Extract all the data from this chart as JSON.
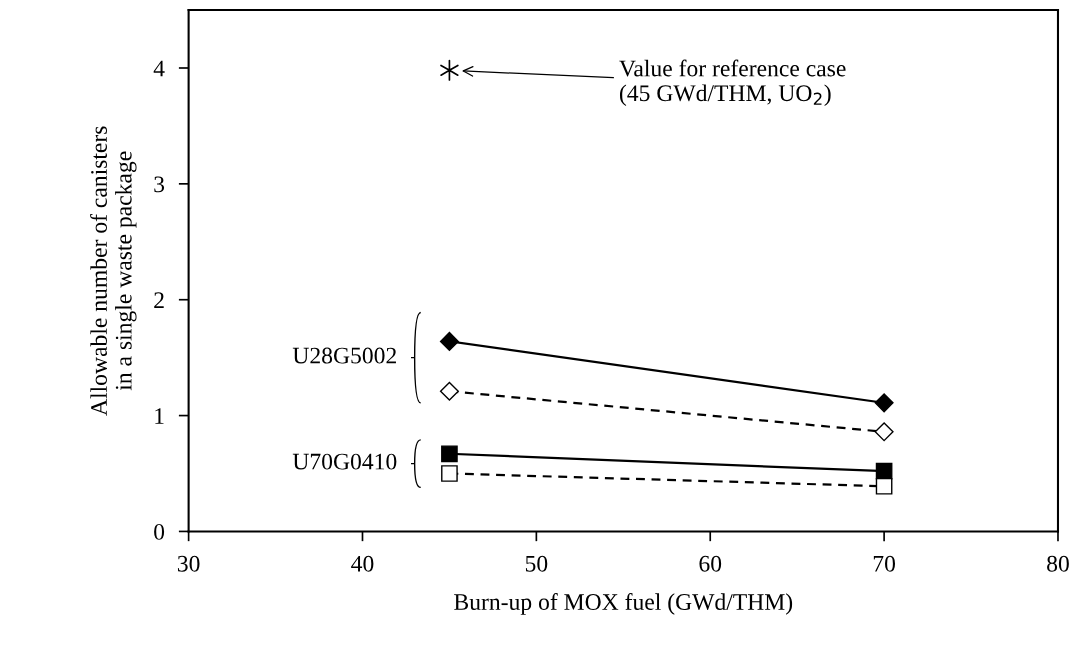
{
  "chart_data": {
    "type": "line",
    "xlabel": "Burn-up of MOX fuel (GWd/THM)",
    "ylabel": "Allowable number of canisters\nin a single waste package",
    "x": [
      45,
      70
    ],
    "series": [
      {
        "color": "#000000",
        "values": [
          1.64,
          1.11
        ],
        "marker": "diamond",
        "line_style": "solid"
      },
      {
        "color": "#000000",
        "values": [
          1.21,
          0.86
        ],
        "marker": "diamond",
        "line_style": "dashed"
      },
      {
        "color": "#000000",
        "values": [
          0.67,
          0.52
        ],
        "marker": "square",
        "line_style": "solid"
      },
      {
        "color": "#000000",
        "values": [
          0.5,
          0.39
        ],
        "marker": "square",
        "line_style": "dashed"
      },
      {
        "type": "scatter",
        "color": "#000000",
        "x": [
          45
        ],
        "values": [
          3.98
        ],
        "marker": "cross"
      }
    ],
    "annotations": [
      "Value for reference case\n(45 GWd/THM, UO$_{2}$)",
      "U28G5002",
      "U70G0410"
    ],
    "xlim": [
      30,
      80
    ],
    "xticks": [
      30,
      40,
      50,
      60,
      70,
      80
    ],
    "ylim": [
      0,
      4.5
    ],
    "yticks": [
      0,
      1,
      2,
      3,
      4
    ],
    "grid": false,
    "legend": false
  }
}
